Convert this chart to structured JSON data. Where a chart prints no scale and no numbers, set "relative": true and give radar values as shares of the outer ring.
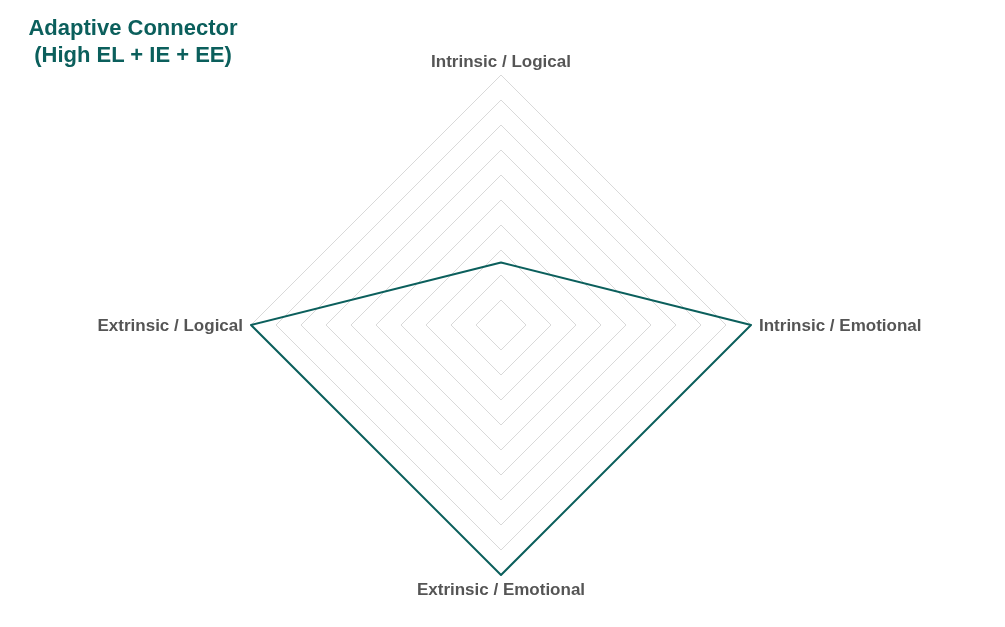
{
  "chart_data": {
    "type": "radar",
    "title": "Adaptive Connector\n(High EL + IE + EE)",
    "categories": [
      "Intrinsic / Logical",
      "Intrinsic / Emotional",
      "Extrinsic / Emotional",
      "Extrinsic / Logical"
    ],
    "relative": true,
    "grid": true,
    "series": [
      {
        "color": "#0b5f5c",
        "values": [
          0.25,
          1,
          1,
          1
        ]
      }
    ]
  }
}
